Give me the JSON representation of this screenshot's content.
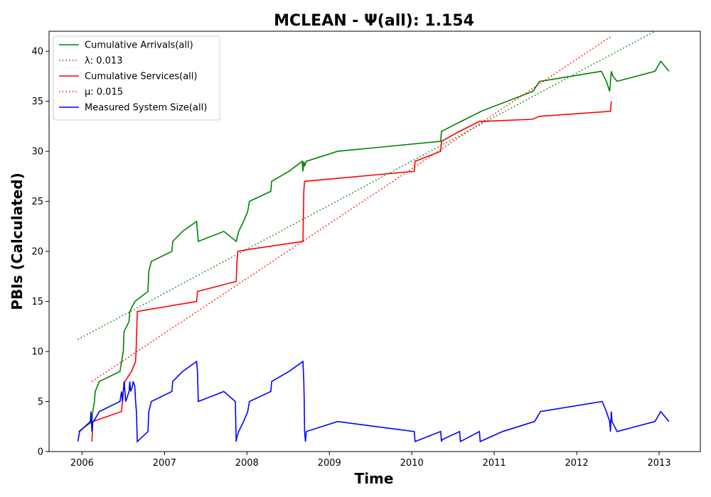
{
  "chart_data": {
    "type": "line",
    "title": "MCLEAN -  Ψ(all): 1.154",
    "xlabel": "Time",
    "ylabel": "PBIs (Calculated)",
    "xlim": [
      2005.6,
      2013.5
    ],
    "ylim": [
      0,
      42
    ],
    "grid": false,
    "legend_position": "top-left",
    "x_ticks": [
      2006,
      2007,
      2008,
      2009,
      2010,
      2011,
      2012,
      2013
    ],
    "x_tick_labels": [
      "2006",
      "2007",
      "2008",
      "2009",
      "2010",
      "2011",
      "2012",
      "2013"
    ],
    "y_ticks": [
      0,
      5,
      10,
      15,
      20,
      25,
      30,
      35,
      40
    ],
    "y_tick_labels": [
      "0",
      "5",
      "10",
      "15",
      "20",
      "25",
      "30",
      "35",
      "40"
    ],
    "series": [
      {
        "name": "Cumulative Arrivals(all)",
        "color": "#008000",
        "style": "solid",
        "x": [
          2005.96,
          2006.12,
          2006.13,
          2006.15,
          2006.16,
          2006.21,
          2006.46,
          2006.5,
          2006.51,
          2006.57,
          2006.58,
          2006.64,
          2006.8,
          2006.81,
          2006.84,
          2007.09,
          2007.1,
          2007.22,
          2007.39,
          2007.4,
          2007.41,
          2007.72,
          2007.87,
          2007.9,
          2007.96,
          2008.01,
          2008.03,
          2008.29,
          2008.3,
          2008.51,
          2008.67,
          2008.68,
          2008.69,
          2008.7,
          2008.72,
          2009.1,
          2010.35,
          2010.36,
          2010.6,
          2010.84,
          2011.47,
          2011.55,
          2011.56,
          2012.3,
          2012.36,
          2012.4,
          2012.42,
          2012.44,
          2012.49,
          2012.95,
          2013.02,
          2013.12
        ],
        "y": [
          2,
          3,
          4,
          5,
          6,
          7,
          8,
          10,
          12,
          13,
          14,
          15,
          16,
          18,
          19,
          20,
          21,
          22,
          23,
          22,
          21,
          22,
          21,
          22,
          23,
          24,
          25,
          26,
          27,
          28,
          29,
          28,
          29,
          28.5,
          29,
          30,
          31,
          32,
          33,
          34,
          36,
          37,
          37,
          38,
          37,
          36,
          38,
          37.5,
          37,
          38,
          39,
          38
        ]
      },
      {
        "name": "λ: 0.013",
        "color": "#008000",
        "style": "dotted",
        "x": [
          2005.95,
          2012.95
        ],
        "y": [
          11.2,
          42
        ]
      },
      {
        "name": "Cumulative Services(all)",
        "color": "#ff0000",
        "style": "solid",
        "x": [
          2006.12,
          2006.13,
          2006.48,
          2006.5,
          2006.52,
          2006.6,
          2006.65,
          2006.66,
          2006.67,
          2007.39,
          2007.4,
          2007.87,
          2007.88,
          2007.89,
          2008.02,
          2008.68,
          2008.69,
          2008.7,
          2010.03,
          2010.04,
          2010.35,
          2010.36,
          2010.58,
          2010.82,
          2010.86,
          2011.46,
          2011.55,
          2012.41,
          2012.42
        ],
        "y": [
          1,
          3,
          4,
          6,
          7,
          8,
          9,
          11,
          14,
          15,
          16,
          17,
          19,
          20,
          20.2,
          21,
          26,
          27,
          28,
          29,
          30,
          31,
          32,
          33,
          33,
          33.2,
          33.5,
          34,
          35
        ]
      },
      {
        "name": "μ: 0.015",
        "color": "#ff0000",
        "style": "dotted",
        "x": [
          2006.12,
          2012.42
        ],
        "y": [
          7,
          41.5
        ]
      },
      {
        "name": "Measured System Size(all)",
        "color": "#0000ff",
        "style": "solid",
        "x": [
          2005.95,
          2005.97,
          2006.1,
          2006.11,
          2006.12,
          2006.13,
          2006.14,
          2006.21,
          2006.46,
          2006.48,
          2006.49,
          2006.5,
          2006.51,
          2006.52,
          2006.53,
          2006.57,
          2006.58,
          2006.59,
          2006.61,
          2006.62,
          2006.64,
          2006.65,
          2006.66,
          2006.67,
          2006.8,
          2006.81,
          2006.84,
          2007.09,
          2007.1,
          2007.22,
          2007.39,
          2007.4,
          2007.41,
          2007.72,
          2007.86,
          2007.87,
          2007.88,
          2007.9,
          2007.96,
          2008.01,
          2008.03,
          2008.29,
          2008.3,
          2008.51,
          2008.68,
          2008.69,
          2008.695,
          2008.7,
          2008.71,
          2008.72,
          2009.1,
          2010.03,
          2010.04,
          2010.35,
          2010.36,
          2010.37,
          2010.58,
          2010.59,
          2010.82,
          2010.83,
          2011.1,
          2011.49,
          2011.56,
          2012.31,
          2012.36,
          2012.4,
          2012.41,
          2012.42,
          2012.43,
          2012.49,
          2012.95,
          2013.02,
          2013.12
        ],
        "y": [
          1,
          2,
          3,
          4,
          2,
          3,
          3,
          4,
          5,
          6,
          5,
          6,
          7,
          6,
          5,
          6,
          7,
          6,
          6.5,
          7,
          6.5,
          5,
          4,
          1,
          2,
          4,
          5,
          6,
          7,
          8,
          9,
          8,
          5,
          6,
          5,
          1,
          1.5,
          2,
          3,
          4,
          5,
          6,
          7,
          8,
          9,
          7,
          5,
          2,
          1,
          2,
          3,
          2,
          1,
          2,
          1,
          1.2,
          2,
          1,
          2,
          1,
          2,
          3,
          4,
          5,
          4,
          3,
          2,
          4,
          3,
          2,
          3,
          4,
          3
        ]
      }
    ]
  }
}
